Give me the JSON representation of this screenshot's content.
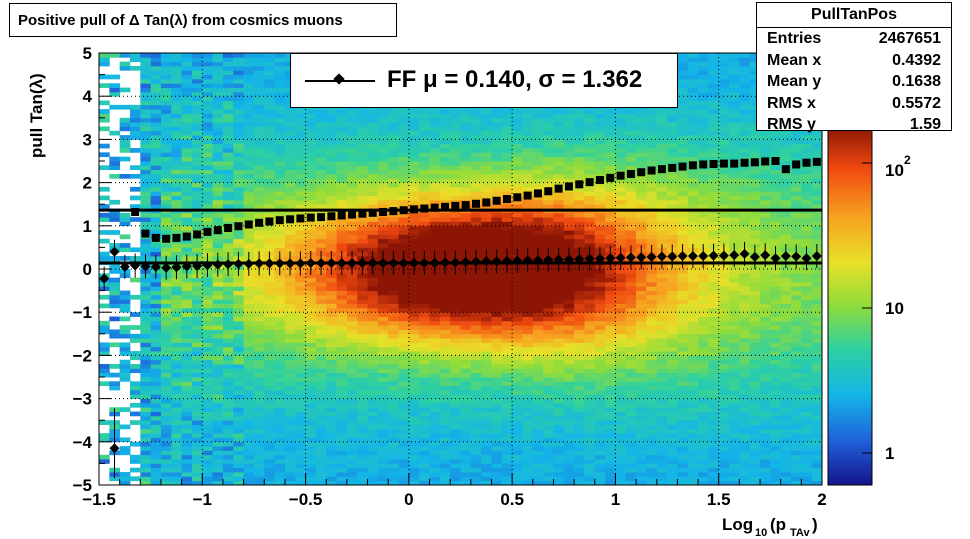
{
  "title": "Positive pull of Δ Tan(λ) from cosmics muons",
  "stats": {
    "name": "PullTanPos",
    "rows": [
      {
        "label": "Entries",
        "value": "2467651"
      },
      {
        "label": "Mean x",
        "value": "0.4392"
      },
      {
        "label": "Mean y",
        "value": "0.1638"
      },
      {
        "label": "RMS x",
        "value": "0.5572"
      },
      {
        "label": "RMS y",
        "value": "1.59"
      }
    ]
  },
  "fit_legend": "FF μ =  0.140, σ =   1.362",
  "chart_data": {
    "type": "heatmap",
    "title": "Positive pull of Δ Tan(λ) from cosmics muons",
    "xlabel": "Log10(pTAv)",
    "ylabel": "pull Tan(λ)",
    "xlim": [
      -1.5,
      2.0
    ],
    "ylim": [
      -5,
      5
    ],
    "x_ticks": [
      "−1.5",
      "−1",
      "−0.5",
      "0",
      "0.5",
      "1",
      "1.5",
      "2"
    ],
    "y_ticks": [
      "−5",
      "−4",
      "−3",
      "−2",
      "−1",
      "0",
      "1",
      "2",
      "3",
      "4",
      "5"
    ],
    "z_scale": "log",
    "z_tick_labels": [
      "1",
      "10",
      "10^2"
    ],
    "grid": true,
    "mean_series": {
      "marker": "diamond",
      "x": [
        -1.475,
        -1.425,
        -1.375,
        -1.325,
        -1.275,
        -1.225,
        -1.175,
        -1.125,
        -1.075,
        -1.025,
        -0.975,
        -0.925,
        -0.875,
        -0.825,
        -0.775,
        -0.725,
        -0.675,
        -0.625,
        -0.575,
        -0.525,
        -0.475,
        -0.425,
        -0.375,
        -0.325,
        -0.275,
        -0.225,
        -0.175,
        -0.125,
        -0.075,
        -0.025,
        0.025,
        0.075,
        0.125,
        0.175,
        0.225,
        0.275,
        0.325,
        0.375,
        0.425,
        0.475,
        0.525,
        0.575,
        0.625,
        0.675,
        0.725,
        0.775,
        0.825,
        0.875,
        0.925,
        0.975,
        1.025,
        1.075,
        1.125,
        1.175,
        1.225,
        1.275,
        1.325,
        1.375,
        1.425,
        1.475,
        1.525,
        1.575,
        1.625,
        1.675,
        1.725,
        1.775,
        1.825,
        1.875,
        1.925,
        1.975
      ],
      "y": [
        -0.22,
        0.4,
        0.05,
        0.08,
        0.06,
        0.05,
        0.03,
        0.04,
        0.06,
        0.07,
        0.09,
        0.1,
        0.11,
        0.12,
        0.12,
        0.13,
        0.13,
        0.13,
        0.13,
        0.13,
        0.14,
        0.14,
        0.14,
        0.14,
        0.14,
        0.14,
        0.14,
        0.14,
        0.14,
        0.14,
        0.14,
        0.14,
        0.14,
        0.15,
        0.15,
        0.16,
        0.17,
        0.18,
        0.18,
        0.19,
        0.19,
        0.2,
        0.2,
        0.21,
        0.22,
        0.22,
        0.23,
        0.24,
        0.24,
        0.25,
        0.26,
        0.27,
        0.27,
        0.28,
        0.29,
        0.29,
        0.3,
        0.3,
        0.3,
        0.31,
        0.31,
        0.32,
        0.35,
        0.28,
        0.32,
        0.25,
        0.3,
        0.29,
        0.25,
        0.3
      ],
      "extra_point": {
        "x": -1.425,
        "y": -4.15
      }
    },
    "rms_series": {
      "marker": "square",
      "x": [
        -1.325,
        -1.275,
        -1.225,
        -1.175,
        -1.125,
        -1.075,
        -1.025,
        -0.975,
        -0.925,
        -0.875,
        -0.825,
        -0.775,
        -0.725,
        -0.675,
        -0.625,
        -0.575,
        -0.525,
        -0.475,
        -0.425,
        -0.375,
        -0.325,
        -0.275,
        -0.225,
        -0.175,
        -0.125,
        -0.075,
        -0.025,
        0.025,
        0.075,
        0.125,
        0.175,
        0.225,
        0.275,
        0.325,
        0.375,
        0.425,
        0.475,
        0.525,
        0.575,
        0.625,
        0.675,
        0.725,
        0.775,
        0.825,
        0.875,
        0.925,
        0.975,
        1.025,
        1.075,
        1.125,
        1.175,
        1.225,
        1.275,
        1.325,
        1.375,
        1.425,
        1.475,
        1.525,
        1.575,
        1.625,
        1.675,
        1.725,
        1.775,
        1.825,
        1.875,
        1.925,
        1.975
      ],
      "y": [
        1.32,
        0.82,
        0.72,
        0.7,
        0.72,
        0.75,
        0.8,
        0.86,
        0.9,
        0.95,
        0.99,
        1.03,
        1.07,
        1.1,
        1.13,
        1.15,
        1.17,
        1.19,
        1.2,
        1.22,
        1.24,
        1.26,
        1.28,
        1.3,
        1.32,
        1.34,
        1.36,
        1.38,
        1.4,
        1.42,
        1.44,
        1.46,
        1.48,
        1.51,
        1.54,
        1.58,
        1.62,
        1.66,
        1.7,
        1.75,
        1.8,
        1.86,
        1.91,
        1.96,
        2.01,
        2.06,
        2.11,
        2.16,
        2.2,
        2.24,
        2.28,
        2.31,
        2.34,
        2.37,
        2.4,
        2.42,
        2.43,
        2.44,
        2.44,
        2.46,
        2.47,
        2.49,
        2.5,
        2.31,
        2.42,
        2.46,
        2.48
      ]
    },
    "fit_lines": [
      {
        "name": "mu",
        "y": 0.14
      },
      {
        "name": "sigma",
        "y": 1.362
      }
    ]
  }
}
